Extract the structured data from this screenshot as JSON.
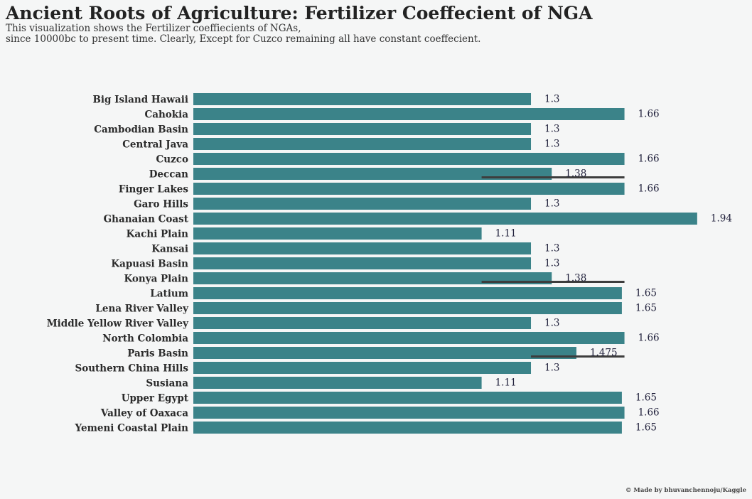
{
  "title": "Ancient Roots of Agriculture: Fertilizer Coeffecient of NGA",
  "subtitle_line1": "This visualization shows the Fertilizer coeffiecients of NGAs,",
  "subtitle_line2": "since 10000bc to present time. Clearly, Except for Cuzco remaining all have constant coeffecient.",
  "credit": "© Made by bhuvanchennoju/Kaggle",
  "colors": {
    "background": "#f5f6f6",
    "bar": "#3b8389",
    "error_bar": "#3d3d3d"
  },
  "chart_data": {
    "type": "bar",
    "orientation": "horizontal",
    "categories": [
      "Big Island Hawaii",
      "Cahokia",
      "Cambodian Basin",
      "Central Java",
      "Cuzco",
      "Deccan",
      "Finger Lakes",
      "Garo Hills",
      "Ghanaian Coast",
      "Kachi Plain",
      "Kansai",
      "Kapuasi Basin",
      "Konya Plain",
      "Latium",
      "Lena River Valley",
      "Middle Yellow River Valley",
      "North Colombia",
      "Paris Basin",
      "Southern China Hills",
      "Susiana",
      "Upper Egypt",
      "Valley of Oaxaca",
      "Yemeni Coastal Plain"
    ],
    "values": [
      1.3,
      1.66,
      1.3,
      1.3,
      1.66,
      1.38,
      1.66,
      1.3,
      1.94,
      1.11,
      1.3,
      1.3,
      1.38,
      1.65,
      1.65,
      1.3,
      1.66,
      1.475,
      1.3,
      1.11,
      1.65,
      1.66,
      1.65
    ],
    "value_labels": [
      "1.3",
      "1.66",
      "1.3",
      "1.3",
      "1.66",
      "1.38",
      "1.66",
      "1.3",
      "1.94",
      "1.11",
      "1.3",
      "1.3",
      "1.38",
      "1.65",
      "1.65",
      "1.3",
      "1.66",
      "1.475",
      "1.3",
      "1.11",
      "1.65",
      "1.66",
      "1.65"
    ],
    "error_bars": [
      {
        "category": "Deccan",
        "low": 1.11,
        "high": 1.66
      },
      {
        "category": "Konya Plain",
        "low": 1.11,
        "high": 1.66
      },
      {
        "category": "Paris Basin",
        "low": 1.3,
        "high": 1.66
      }
    ],
    "xlim": [
      0,
      2.2
    ],
    "grid": false,
    "xlabel": "",
    "ylabel": ""
  }
}
